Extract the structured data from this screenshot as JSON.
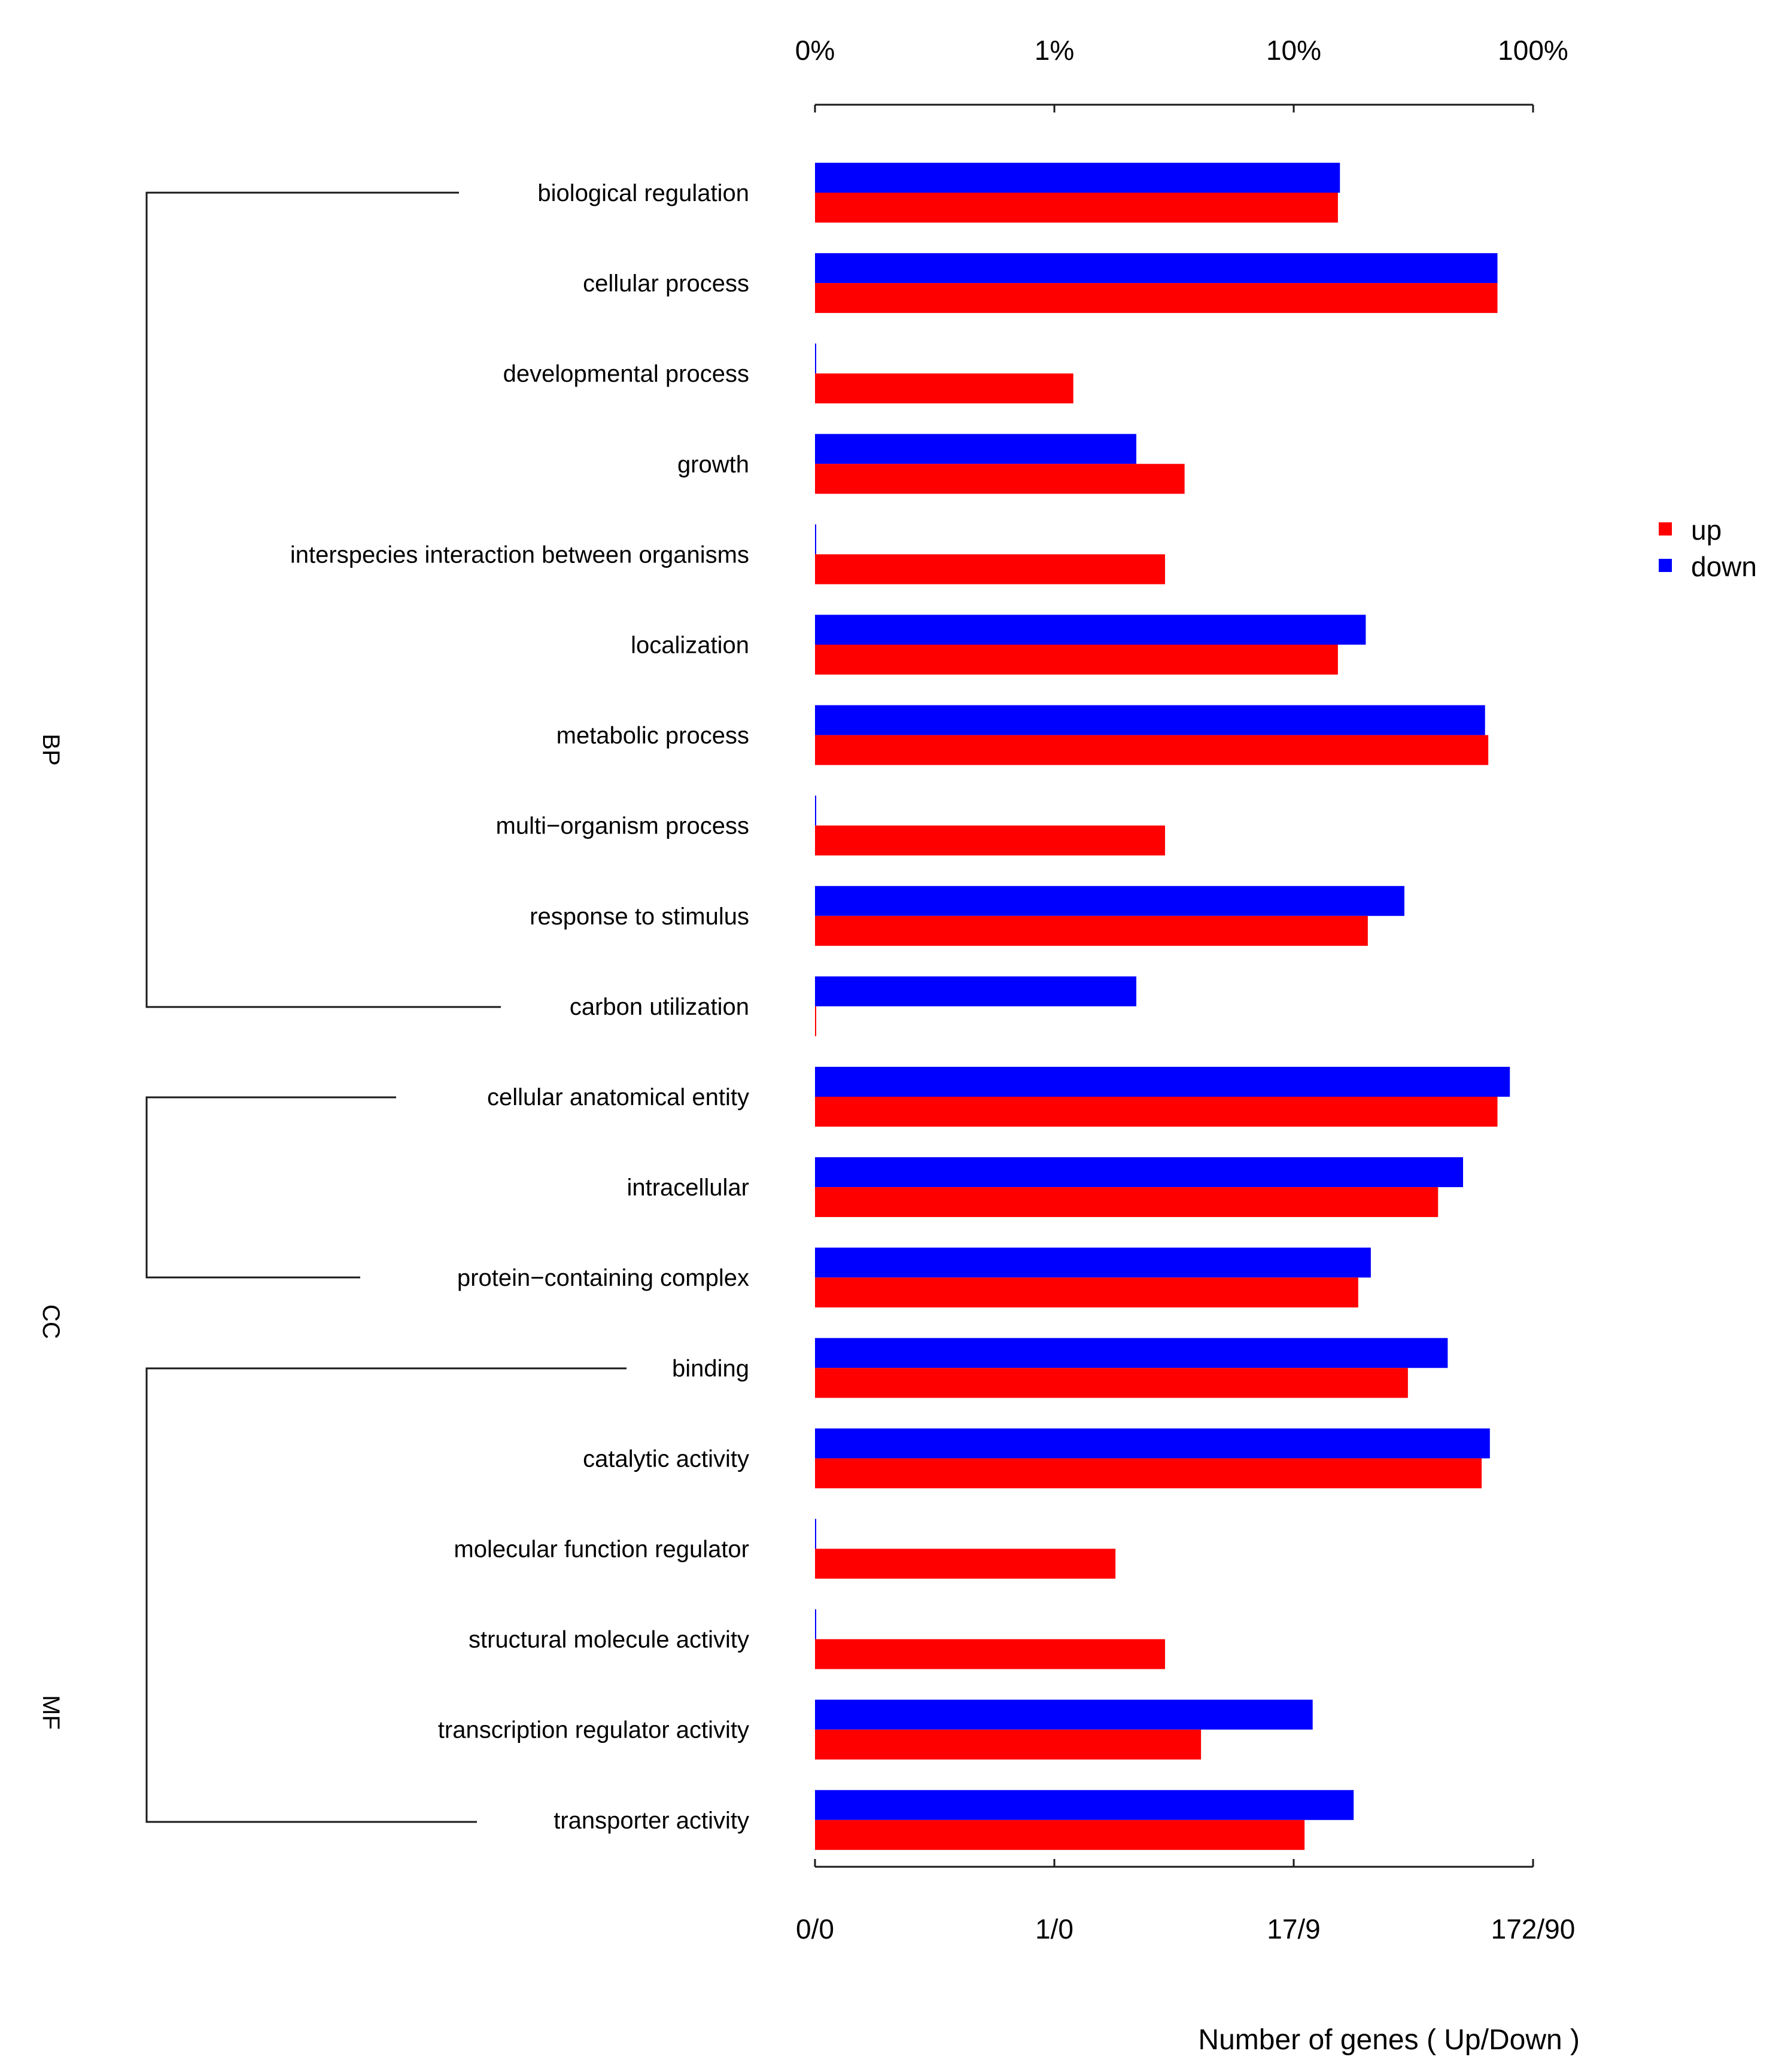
{
  "chart_data": {
    "type": "bar",
    "orientation": "horizontal",
    "xscale": "log",
    "top_axis_ticks": [
      "0%",
      "1%",
      "10%",
      "100%"
    ],
    "bottom_axis_ticks": [
      "0/0",
      "1/0",
      "17/9",
      "172/90"
    ],
    "xlabel": "Number of genes ( Up/Down )",
    "legend": {
      "position": "right",
      "items": [
        {
          "name": "up",
          "color": "#ff0000"
        },
        {
          "name": "down",
          "color": "#0000ff"
        }
      ]
    },
    "groups": [
      {
        "name": "BP",
        "first": 0,
        "last": 9
      },
      {
        "name": "CC",
        "first": 10,
        "last": 12
      },
      {
        "name": "MF",
        "first": 13,
        "last": 18
      }
    ],
    "categories": [
      "biological regulation",
      "cellular process",
      "developmental process",
      "growth",
      "interspecies interaction between organisms",
      "localization",
      "metabolic process",
      "multi−organism process",
      "response to stimulus",
      "carbon utilization",
      "cellular anatomical entity",
      "intracellular",
      "protein−containing complex",
      "binding",
      "catalytic activity",
      "molecular function regulator",
      "structural molecule activity",
      "transcription regulator activity",
      "transporter activity"
    ],
    "unit": "percent of genes (log scale)",
    "series": [
      {
        "name": "up",
        "color": "#ff0000",
        "values": [
          15.3,
          71,
          1.2,
          3.5,
          2.9,
          15.3,
          65,
          2.9,
          20.4,
          0,
          71,
          40.1,
          18.6,
          30,
          61,
          1.8,
          2.9,
          4.1,
          11.1
        ]
      },
      {
        "name": "down",
        "color": "#0000ff",
        "values": [
          15.6,
          71,
          0,
          2.2,
          0,
          20,
          63,
          0,
          29,
          2.2,
          80,
          51,
          21,
          44,
          66,
          0,
          0,
          12,
          17.8
        ]
      }
    ]
  }
}
